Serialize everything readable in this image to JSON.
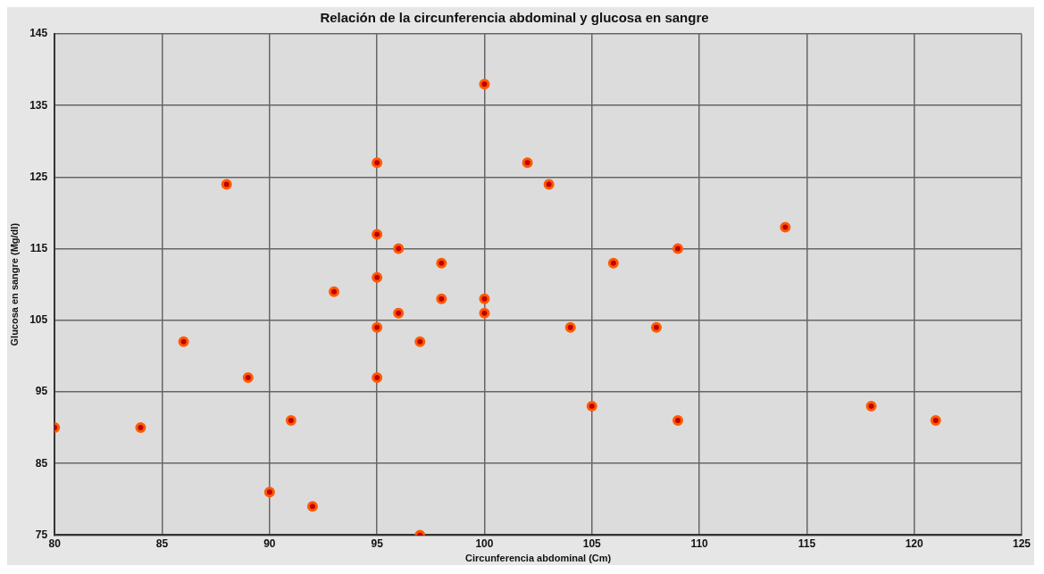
{
  "chart_data": {
    "type": "scatter",
    "title": "Relación de la circunferencia abdominal y glucosa en sangre",
    "xlabel": "Circunferencia abdominal (Cm)",
    "ylabel": "Glucosa en sangre (Mg/dl)",
    "series": [
      {
        "color": "#ff5a00",
        "x": [
          100,
          95,
          88,
          95,
          96,
          98,
          95,
          93,
          98,
          100,
          96,
          100,
          86,
          95,
          97,
          89,
          95,
          91,
          80,
          84,
          90,
          92,
          97,
          102,
          103,
          114,
          109,
          106,
          104,
          108,
          105,
          109,
          118,
          121
        ],
        "values": [
          138,
          127,
          124,
          117,
          115,
          113,
          111,
          109,
          108,
          108,
          106,
          106,
          102,
          104,
          102,
          97,
          97,
          91,
          90,
          90,
          81,
          79,
          75,
          127,
          124,
          118,
          115,
          113,
          104,
          104,
          93,
          91,
          93,
          91
        ]
      }
    ],
    "xlim": [
      80,
      125
    ],
    "xticks": [
      80,
      85,
      90,
      95,
      100,
      105,
      110,
      115,
      120,
      125
    ],
    "ylim": [
      75,
      145
    ],
    "yticks": [
      75,
      85,
      95,
      105,
      115,
      125,
      135,
      145
    ],
    "grid": true,
    "legend": false,
    "marker": "circle"
  }
}
